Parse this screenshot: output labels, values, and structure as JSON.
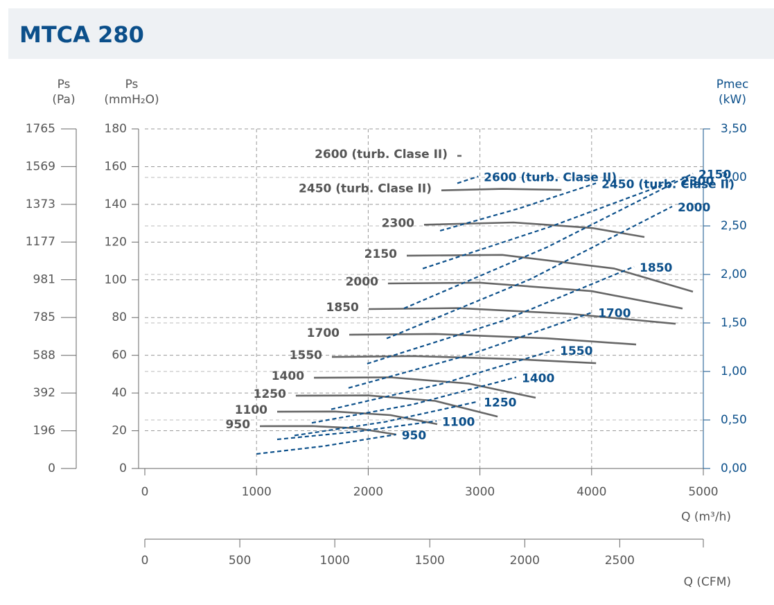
{
  "chart_data": {
    "type": "line",
    "title": "MTCA 280",
    "y3_label": [
      "Ps",
      "(Pa)"
    ],
    "y_label": [
      "Ps",
      "(mmH₂O)"
    ],
    "y2_label": [
      "Pmec",
      "(kW)"
    ],
    "x_label": "Q (m³/h)",
    "x2_label": "Q (CFM)",
    "xlim": [
      0,
      5000
    ],
    "xticks": [
      0,
      1000,
      2000,
      3000,
      4000,
      5000
    ],
    "x2lim": [
      0,
      2940
    ],
    "x2ticks": [
      0,
      500,
      1000,
      1500,
      2000,
      2500
    ],
    "ylim": [
      0,
      180
    ],
    "yticks": [
      0,
      20,
      40,
      60,
      80,
      100,
      120,
      140,
      160,
      180
    ],
    "y3lim": [
      0,
      1765
    ],
    "y3ticks": [
      0,
      196,
      392,
      588,
      785,
      981,
      1177,
      1373,
      1569,
      1765
    ],
    "y2lim": [
      0,
      3.5
    ],
    "y2ticks": [
      {
        "value": 0,
        "label": "0,00"
      },
      {
        "value": 0.5,
        "label": "0,50"
      },
      {
        "value": 1,
        "label": "1,00"
      },
      {
        "value": 1.5,
        "label": "1,50"
      },
      {
        "value": 2,
        "label": "2,00"
      },
      {
        "value": 2.5,
        "label": "2,50"
      },
      {
        "value": 3,
        "label": "3,00"
      },
      {
        "value": 3.5,
        "label": "3,50"
      }
    ],
    "grid": true,
    "series": [
      {
        "name": "950",
        "color": "#666666",
        "x": [
          1030,
          1500,
          1900,
          2250
        ],
        "values": [
          22.4,
          22.5,
          21.3,
          18.0
        ]
      },
      {
        "name": "1100",
        "color": "#666666",
        "x": [
          1185,
          1700,
          2200,
          2618
        ],
        "values": [
          30.1,
          30.2,
          28.3,
          23.5
        ]
      },
      {
        "name": "1250",
        "color": "#666666",
        "x": [
          1352,
          2000,
          2600,
          3158
        ],
        "values": [
          38.6,
          38.7,
          35.8,
          27.5
        ]
      },
      {
        "name": "1400",
        "color": "#666666",
        "x": [
          1514,
          2200,
          2900,
          3499
        ],
        "values": [
          48.1,
          48.3,
          45.0,
          37.5
        ]
      },
      {
        "name": "1550",
        "color": "#666666",
        "x": [
          1675,
          2400,
          3300,
          4040
        ],
        "values": [
          59.1,
          59.6,
          58.0,
          55.8
        ]
      },
      {
        "name": "1700",
        "color": "#666666",
        "x": [
          1830,
          2600,
          3600,
          4398
        ],
        "values": [
          70.9,
          71.3,
          69.0,
          65.7
        ]
      },
      {
        "name": "1850",
        "color": "#666666",
        "x": [
          2003,
          2800,
          3800,
          4752
        ],
        "values": [
          84.5,
          85.0,
          82.0,
          76.7
        ]
      },
      {
        "name": "2000",
        "color": "#666666",
        "x": [
          2177,
          3000,
          4000,
          4814
        ],
        "values": [
          98.1,
          98.5,
          94.0,
          84.8
        ]
      },
      {
        "name": "2150",
        "color": "#666666",
        "x": [
          2345,
          3200,
          4200,
          4907
        ],
        "values": [
          112.8,
          113.2,
          106.0,
          93.7
        ]
      },
      {
        "name": "2300",
        "color": "#666666",
        "x": [
          2500,
          3300,
          4000,
          4473
        ],
        "values": [
          129.2,
          130.4,
          127.5,
          122.7
        ]
      },
      {
        "name": "2450 (turb. Clase II)",
        "color": "#666666",
        "x": [
          2655,
          3200,
          3730
        ],
        "values": [
          147.4,
          148.2,
          147.7
        ]
      },
      {
        "name": "2600 (turb. Clase II)",
        "color": "#666666",
        "x": [
          2798,
          2835
        ],
        "values": [
          165.7,
          165.7
        ]
      },
      {
        "name": "950",
        "color": "#0b4f8a",
        "axis": "y2",
        "x": [
          1000,
          1600,
          2250
        ],
        "values": [
          0.15,
          0.23,
          0.35
        ]
      },
      {
        "name": "1100",
        "color": "#0b4f8a",
        "axis": "y2",
        "x": [
          1185,
          1900,
          2612
        ],
        "values": [
          0.3,
          0.38,
          0.49
        ]
      },
      {
        "name": "1250",
        "color": "#0b4f8a",
        "axis": "y2",
        "x": [
          1340,
          2150,
          2985
        ],
        "values": [
          0.34,
          0.48,
          0.69
        ]
      },
      {
        "name": "1400",
        "color": "#0b4f8a",
        "axis": "y2",
        "x": [
          1495,
          2400,
          3325
        ],
        "values": [
          0.47,
          0.66,
          0.94
        ]
      },
      {
        "name": "1550",
        "color": "#0b4f8a",
        "axis": "y2",
        "x": [
          1669,
          2650,
          3667
        ],
        "values": [
          0.61,
          0.87,
          1.22
        ]
      },
      {
        "name": "1700",
        "color": "#0b4f8a",
        "axis": "y2",
        "x": [
          1824,
          2900,
          4008
        ],
        "values": [
          0.83,
          1.17,
          1.61
        ]
      },
      {
        "name": "1850",
        "color": "#0b4f8a",
        "axis": "y2",
        "x": [
          1991,
          3200,
          4380
        ],
        "values": [
          1.08,
          1.52,
          2.08
        ]
      },
      {
        "name": "2000",
        "color": "#0b4f8a",
        "axis": "y2",
        "x": [
          2165,
          3450,
          4721
        ],
        "values": [
          1.34,
          1.95,
          2.7
        ]
      },
      {
        "name": "2150",
        "color": "#0b4f8a",
        "axis": "y2",
        "x": [
          2320,
          3600,
          4907
        ],
        "values": [
          1.65,
          2.28,
          3.04
        ]
      },
      {
        "name": "2300",
        "color": "#0b4f8a",
        "axis": "y2",
        "x": [
          2488,
          3650,
          4752
        ],
        "values": [
          2.06,
          2.5,
          2.97
        ]
      },
      {
        "name": "2450 (turb. Clase II)",
        "color": "#0b4f8a",
        "axis": "y2",
        "x": [
          2643,
          3350,
          4039
        ],
        "values": [
          2.45,
          2.68,
          2.94
        ]
      },
      {
        "name": "2600 (turb. Clase II)",
        "color": "#0b4f8a",
        "axis": "y2",
        "x": [
          2798,
          2985
        ],
        "values": [
          2.94,
          3.01
        ]
      }
    ]
  }
}
